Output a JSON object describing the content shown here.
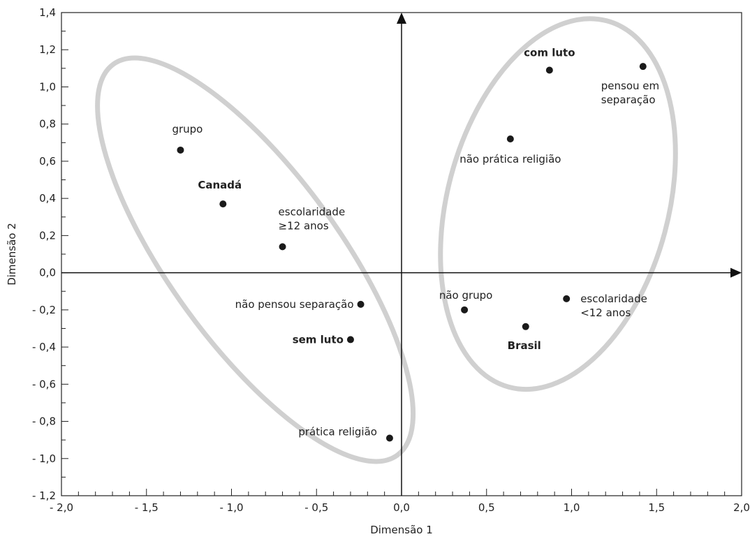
{
  "chart_data": {
    "type": "scatter",
    "title": "",
    "xlabel": "Dimensão 1",
    "ylabel": "Dimensão 2",
    "xlim": [
      -2.0,
      2.0
    ],
    "ylim": [
      -1.2,
      1.4
    ],
    "x_ticks": [
      {
        "value": -2.0,
        "label": "- 2,0"
      },
      {
        "value": -1.5,
        "label": "- 1,5"
      },
      {
        "value": -1.0,
        "label": "- 1,0"
      },
      {
        "value": -0.5,
        "label": "- 0,5"
      },
      {
        "value": 0.0,
        "label": "0,0"
      },
      {
        "value": 0.5,
        "label": "0,5"
      },
      {
        "value": 1.0,
        "label": "1,0"
      },
      {
        "value": 1.5,
        "label": "1,5"
      },
      {
        "value": 2.0,
        "label": "2,0"
      }
    ],
    "y_ticks": [
      {
        "value": 1.4,
        "label": "1,4"
      },
      {
        "value": 1.2,
        "label": "1,2"
      },
      {
        "value": 1.0,
        "label": "1,0"
      },
      {
        "value": 0.8,
        "label": "0,8"
      },
      {
        "value": 0.6,
        "label": "0,6"
      },
      {
        "value": 0.4,
        "label": "0,4"
      },
      {
        "value": 0.2,
        "label": "0,2"
      },
      {
        "value": 0.0,
        "label": "0,0"
      },
      {
        "value": -0.2,
        "label": "- 0,2"
      },
      {
        "value": -0.4,
        "label": "- 0,4"
      },
      {
        "value": -0.6,
        "label": "- 0,6"
      },
      {
        "value": -0.8,
        "label": "- 0,8"
      },
      {
        "value": -1.0,
        "label": "- 1,0"
      },
      {
        "value": -1.2,
        "label": "- 1,2"
      }
    ],
    "points": [
      {
        "name": "grupo",
        "label_lines": [
          "grupo"
        ],
        "x": -1.3,
        "y": 0.66,
        "bold": false
      },
      {
        "name": "canada",
        "label_lines": [
          "Canadá"
        ],
        "x": -1.05,
        "y": 0.37,
        "bold": true
      },
      {
        "name": "escolaridade-12-mais",
        "label_lines": [
          "escolaridade",
          "≥12 anos"
        ],
        "x": -0.7,
        "y": 0.14,
        "bold": false
      },
      {
        "name": "nao-pensou-separacao",
        "label_lines": [
          "não pensou separação"
        ],
        "x": -0.24,
        "y": -0.17,
        "bold": false
      },
      {
        "name": "sem-luto",
        "label_lines": [
          "sem luto"
        ],
        "x": -0.3,
        "y": -0.36,
        "bold": true
      },
      {
        "name": "pratica-religiao",
        "label_lines": [
          "prática religião"
        ],
        "x": -0.07,
        "y": -0.89,
        "bold": false
      },
      {
        "name": "com-luto",
        "label_lines": [
          "com luto"
        ],
        "x": 0.87,
        "y": 1.09,
        "bold": true
      },
      {
        "name": "pensou-em-separacao",
        "label_lines": [
          "pensou em",
          "separação"
        ],
        "x": 1.42,
        "y": 1.11,
        "bold": false
      },
      {
        "name": "nao-pratica-religiao",
        "label_lines": [
          "não prática religião"
        ],
        "x": 0.64,
        "y": 0.72,
        "bold": false
      },
      {
        "name": "nao-grupo",
        "label_lines": [
          "não grupo"
        ],
        "x": 0.37,
        "y": -0.2,
        "bold": false
      },
      {
        "name": "escolaridade-menos-12",
        "label_lines": [
          "escolaridade",
          "<12 anos"
        ],
        "x": 0.97,
        "y": -0.14,
        "bold": false
      },
      {
        "name": "brasil",
        "label_lines": [
          "Brasil"
        ],
        "x": 0.73,
        "y": -0.29,
        "bold": true
      }
    ],
    "ellipses": [
      {
        "name": "left-cluster",
        "cx": -0.86,
        "cy": 0.07,
        "rx": 0.5,
        "ry": 1.3,
        "rotation_deg": -36,
        "color": "#d0d0d0"
      },
      {
        "name": "right-cluster",
        "cx": 0.92,
        "cy": 0.37,
        "rx": 0.65,
        "ry": 1.02,
        "rotation_deg": 15,
        "color": "#d0d0d0"
      }
    ],
    "grid": false,
    "legend": "none",
    "point_color": "#1a1a1a"
  }
}
